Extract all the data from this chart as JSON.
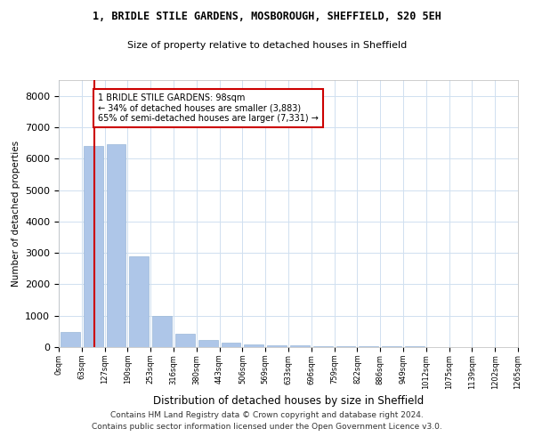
{
  "title1": "1, BRIDLE STILE GARDENS, MOSBOROUGH, SHEFFIELD, S20 5EH",
  "title2": "Size of property relative to detached houses in Sheffield",
  "xlabel": "Distribution of detached houses by size in Sheffield",
  "ylabel": "Number of detached properties",
  "bar_values": [
    480,
    6400,
    6450,
    2900,
    1000,
    420,
    220,
    130,
    90,
    65,
    50,
    40,
    30,
    25,
    20,
    15,
    12,
    10,
    8,
    6
  ],
  "bar_labels": [
    "0sqm",
    "63sqm",
    "127sqm",
    "190sqm",
    "253sqm",
    "316sqm",
    "380sqm",
    "443sqm",
    "506sqm",
    "569sqm",
    "633sqm",
    "696sqm",
    "759sqm",
    "822sqm",
    "886sqm",
    "949sqm",
    "1012sqm",
    "1075sqm",
    "1139sqm",
    "1202sqm",
    "1265sqm"
  ],
  "bar_color": "#aec6e8",
  "bar_edge_color": "#9ab8d8",
  "grid_color": "#d0e0f0",
  "vline_color": "#cc0000",
  "annotation_line1": "1 BRIDLE STILE GARDENS: 98sqm",
  "annotation_line2": "← 34% of detached houses are smaller (3,883)",
  "annotation_line3": "65% of semi-detached houses are larger (7,331) →",
  "annotation_box_color": "#ffffff",
  "annotation_box_edge_color": "#cc0000",
  "ylim": [
    0,
    8500
  ],
  "yticks": [
    0,
    1000,
    2000,
    3000,
    4000,
    5000,
    6000,
    7000,
    8000
  ],
  "footer1": "Contains HM Land Registry data © Crown copyright and database right 2024.",
  "footer2": "Contains public sector information licensed under the Open Government Licence v3.0."
}
